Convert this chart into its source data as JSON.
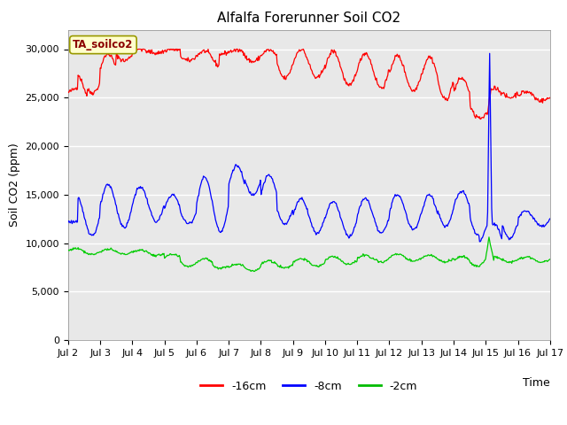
{
  "title": "Alfalfa Forerunner Soil CO2",
  "ylabel": "Soil CO2 (ppm)",
  "xlabel": "Time",
  "ylim": [
    0,
    32000
  ],
  "yticks": [
    0,
    5000,
    10000,
    15000,
    20000,
    25000,
    30000
  ],
  "xtick_labels": [
    "Jul 2",
    "Jul 3",
    "Jul 4",
    "Jul 5",
    "Jul 6",
    "Jul 7",
    "Jul 8",
    "Jul 9",
    "Jul 10",
    "Jul 11",
    "Jul 12",
    "Jul 13",
    "Jul 14",
    "Jul 15",
    "Jul 16",
    "Jul 17"
  ],
  "xtick_positions": [
    2,
    3,
    4,
    5,
    6,
    7,
    8,
    9,
    10,
    11,
    12,
    13,
    14,
    15,
    16,
    17
  ],
  "legend_labels": [
    "-16cm",
    "-8cm",
    "-2cm"
  ],
  "legend_colors": [
    "#ff0000",
    "#0000ff",
    "#00bb00"
  ],
  "annotation_text": "TA_soilco2",
  "plot_bg_color": "#e8e8e8",
  "line_colors": [
    "#ff0000",
    "#0000ff",
    "#00cc00"
  ],
  "title_fontsize": 11,
  "label_fontsize": 9,
  "tick_fontsize": 8
}
